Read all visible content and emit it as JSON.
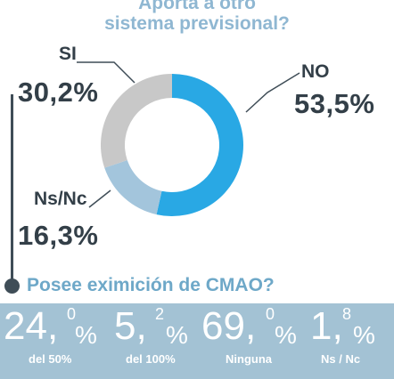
{
  "title": {
    "line1": "Aporta a otro",
    "line2": "sistema previsional?"
  },
  "chart_data": {
    "type": "pie",
    "variant": "donut",
    "title": "Aporta a otro sistema previsional?",
    "slices": [
      {
        "label": "NO",
        "value": 53.5,
        "display": "53,5%",
        "color": "#29a8e4"
      },
      {
        "label": "Ns/Nc",
        "value": 16.3,
        "display": "16,3%",
        "color": "#a3c5dc"
      },
      {
        "label": "SI",
        "value": 30.2,
        "display": "30,2%",
        "color": "#c8c8c8"
      }
    ]
  },
  "question2": "Posee eximición de CMAO?",
  "stats": [
    {
      "int": "24,",
      "dec": "0",
      "sym": "%",
      "caption": "del 50%",
      "value": 24.0
    },
    {
      "int": "5,",
      "dec": "2",
      "sym": "%",
      "caption": "del 100%",
      "value": 5.2
    },
    {
      "int": "69,",
      "dec": "0",
      "sym": "%",
      "caption": "Ninguna",
      "value": 69.0
    },
    {
      "int": "1,",
      "dec": "8",
      "sym": "%",
      "caption": "Ns / Nc",
      "value": 1.8
    }
  ],
  "colors": {
    "title": "#8fb7d2",
    "question2": "#6ea8c8",
    "panel": "#a3c2d4",
    "label": "#333f48"
  }
}
